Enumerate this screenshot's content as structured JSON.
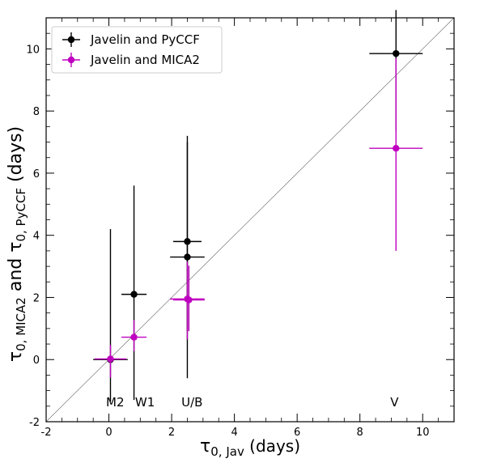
{
  "chart_data": {
    "type": "scatter",
    "xlabel_main": "τ",
    "xlabel_sub": "0, Jav",
    "xlabel_unit": " (days)",
    "ylabel_main1": "τ",
    "ylabel_sub1": "0, MICA2",
    "ylabel_mid": "  and τ",
    "ylabel_sub2": "0, PyCCF",
    "ylabel_unit": " (days)",
    "xlim": [
      -2,
      11
    ],
    "ylim": [
      -2,
      11
    ],
    "xticks": [
      -2,
      0,
      2,
      4,
      6,
      8,
      10
    ],
    "yticks": [
      -2,
      0,
      2,
      4,
      6,
      8,
      10
    ],
    "reference_line": "y = x",
    "legend_position": "top-left",
    "grid": false,
    "series": [
      {
        "name": "Javelin and PyCCF",
        "color": "#000000",
        "points": [
          {
            "x": 0.05,
            "y": 0.0,
            "xerr": 0.55,
            "yerr_low": 1.35,
            "yerr_high": 4.2
          },
          {
            "x": 0.8,
            "y": 2.1,
            "xerr": 0.4,
            "yerr_low": 3.4,
            "yerr_high": 3.5
          },
          {
            "x": 2.5,
            "y": 3.8,
            "xerr": 0.45,
            "yerr_low": 2.9,
            "yerr_high": 3.4
          },
          {
            "x": 2.5,
            "y": 3.3,
            "xerr": 0.55,
            "yerr_low": 3.9,
            "yerr_high": 3.7
          },
          {
            "x": 9.15,
            "y": 9.85,
            "xerr": 0.85,
            "yerr_low": 2.5,
            "yerr_high": 1.4
          }
        ]
      },
      {
        "name": "Javelin and MICA2",
        "color": "#c000c0",
        "points": [
          {
            "x": 0.05,
            "y": 0.02,
            "xerr": 0.5,
            "yerr_low": 0.6,
            "yerr_high": 0.45
          },
          {
            "x": 0.8,
            "y": 0.72,
            "xerr": 0.4,
            "yerr_low": 0.45,
            "yerr_high": 0.55
          },
          {
            "x": 2.5,
            "y": 1.95,
            "xerr": 0.55,
            "yerr_low": 1.3,
            "yerr_high": 1.2
          },
          {
            "x": 2.55,
            "y": 1.92,
            "xerr": 0.5,
            "yerr_low": 1.0,
            "yerr_high": 1.1
          },
          {
            "x": 9.15,
            "y": 6.8,
            "xerr": 0.85,
            "yerr_low": 3.3,
            "yerr_high": 2.9
          }
        ]
      }
    ],
    "annotations": [
      {
        "text": "M2",
        "x": 0.2
      },
      {
        "text": "W1",
        "x": 1.15
      },
      {
        "text": "U/B",
        "x": 2.65
      },
      {
        "text": "V",
        "x": 9.1
      }
    ],
    "annotation_y": -1.35
  }
}
